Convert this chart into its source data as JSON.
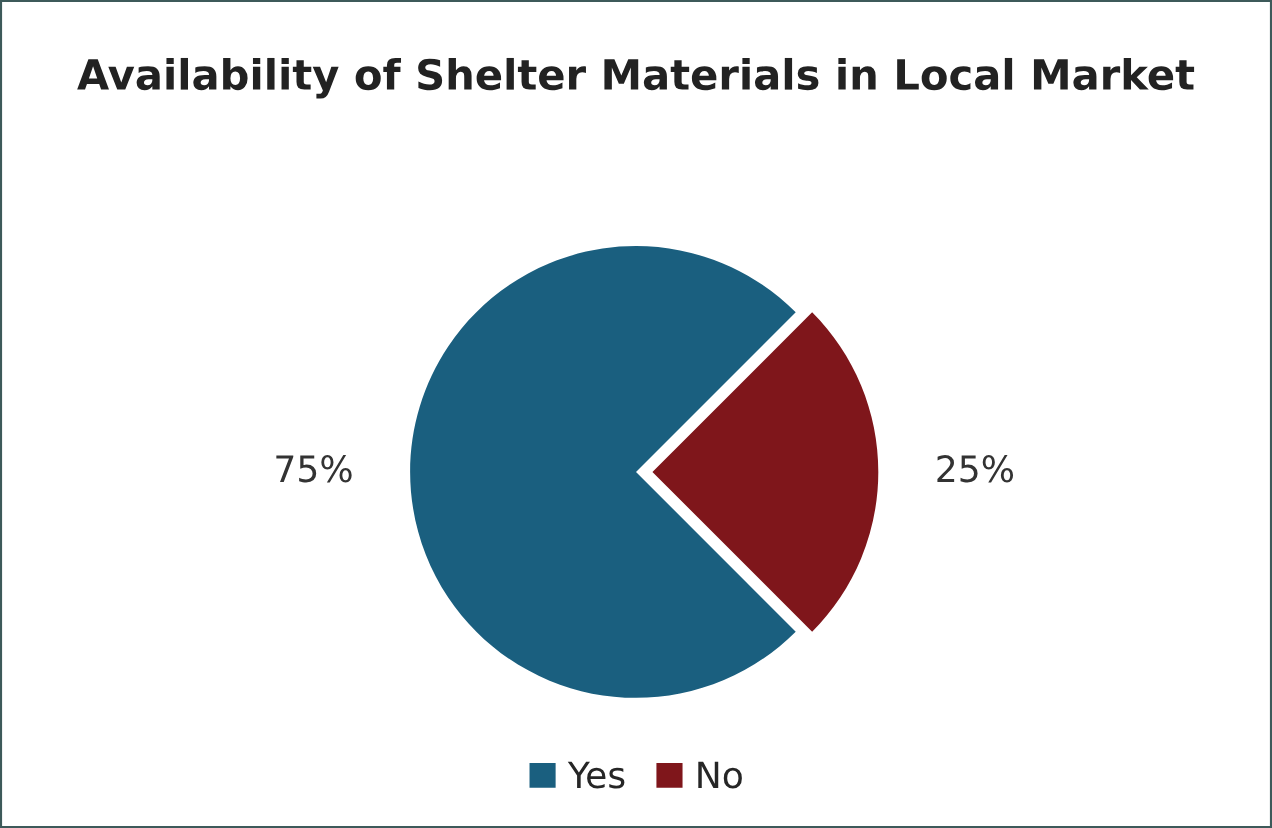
{
  "chart_data": {
    "type": "pie",
    "title": "Availability of Shelter Materials in Local Market",
    "categories": [
      "Yes",
      "No"
    ],
    "values": [
      75,
      25
    ],
    "colors": [
      "#1a5f7f",
      "#7f161b"
    ],
    "value_labels": [
      "75%",
      "25%"
    ],
    "legend": "bottom"
  }
}
